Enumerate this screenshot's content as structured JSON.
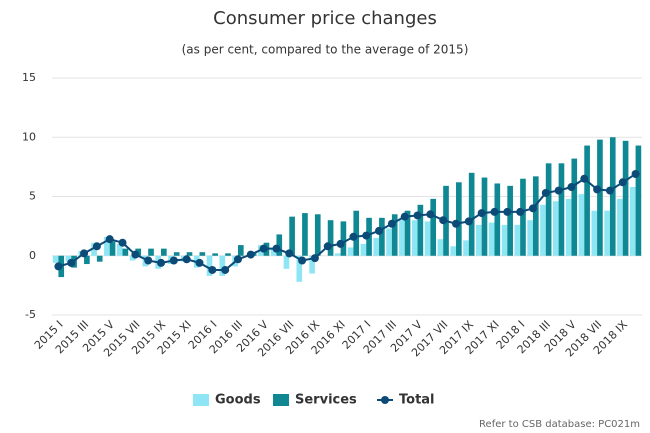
{
  "chart_data": {
    "type": "bar-line",
    "title": "Consumer price changes",
    "subtitle": "(as per cent, compared to the average of 2015)",
    "source": "Refer to CSB database: PC021m",
    "categories": [
      "2015 I",
      null,
      "2015 III",
      null,
      "2015 V",
      null,
      "2015 VII",
      null,
      "2015 IX",
      null,
      "2015 XI",
      null,
      "2016 I",
      null,
      "2016 III",
      null,
      "2016 V",
      null,
      "2016 VII",
      null,
      "2016 IX",
      null,
      "2016 XI",
      null,
      "2017 I",
      null,
      "2017 III",
      null,
      "2017 V",
      null,
      "2017 VII",
      null,
      "2017 IX",
      null,
      "2017 XI",
      null,
      "2018 I",
      null,
      "2018 III",
      null,
      "2018 V",
      null,
      "2018 VII",
      null,
      "2018 IX",
      null
    ],
    "series": [
      {
        "name": "Goods",
        "color": "#8ee6f4",
        "kind": "bar",
        "values": [
          -0.6,
          -0.5,
          0.4,
          1.1,
          1.6,
          1.0,
          -0.4,
          -0.9,
          -1.1,
          -0.7,
          -0.5,
          -1.0,
          -1.7,
          -1.7,
          -0.9,
          0.0,
          0.9,
          0.6,
          -1.1,
          -2.2,
          -1.5,
          0.0,
          0.2,
          0.7,
          1.0,
          1.5,
          2.3,
          3.0,
          3.0,
          2.9,
          1.4,
          0.8,
          1.3,
          2.6,
          2.8,
          2.6,
          2.6,
          3.0,
          4.3,
          4.6,
          4.8,
          5.2,
          3.8,
          3.8,
          4.8,
          5.8
        ]
      },
      {
        "name": "Services",
        "color": "#0f8893",
        "kind": "bar",
        "values": [
          -1.8,
          -1.0,
          -0.7,
          -0.5,
          1.2,
          0.6,
          0.6,
          0.6,
          0.6,
          0.3,
          0.3,
          0.3,
          0.2,
          0.2,
          0.9,
          0.2,
          1.1,
          1.8,
          3.3,
          3.6,
          3.5,
          3.0,
          2.9,
          3.8,
          3.2,
          3.2,
          3.5,
          3.8,
          4.3,
          4.8,
          5.9,
          6.2,
          7.0,
          6.6,
          6.1,
          5.9,
          6.5,
          6.7,
          7.8,
          7.8,
          8.2,
          9.3,
          9.8,
          10.0,
          9.7,
          9.3
        ]
      },
      {
        "name": "Total",
        "color": "#0c4a78",
        "kind": "line",
        "values": [
          -0.9,
          -0.6,
          0.2,
          0.8,
          1.4,
          1.1,
          0.1,
          -0.4,
          -0.6,
          -0.4,
          -0.3,
          -0.6,
          -1.2,
          -1.2,
          -0.3,
          0.1,
          0.6,
          0.6,
          0.2,
          -0.4,
          -0.2,
          0.8,
          1.0,
          1.6,
          1.7,
          2.1,
          2.7,
          3.3,
          3.4,
          3.5,
          3.0,
          2.7,
          2.9,
          3.6,
          3.7,
          3.7,
          3.7,
          4.0,
          5.3,
          5.5,
          5.8,
          6.5,
          5.6,
          5.5,
          6.2,
          6.9
        ]
      }
    ],
    "ylim": [
      -5,
      15
    ],
    "yticks": [
      -5,
      0,
      5,
      10,
      15
    ],
    "grid": true
  }
}
